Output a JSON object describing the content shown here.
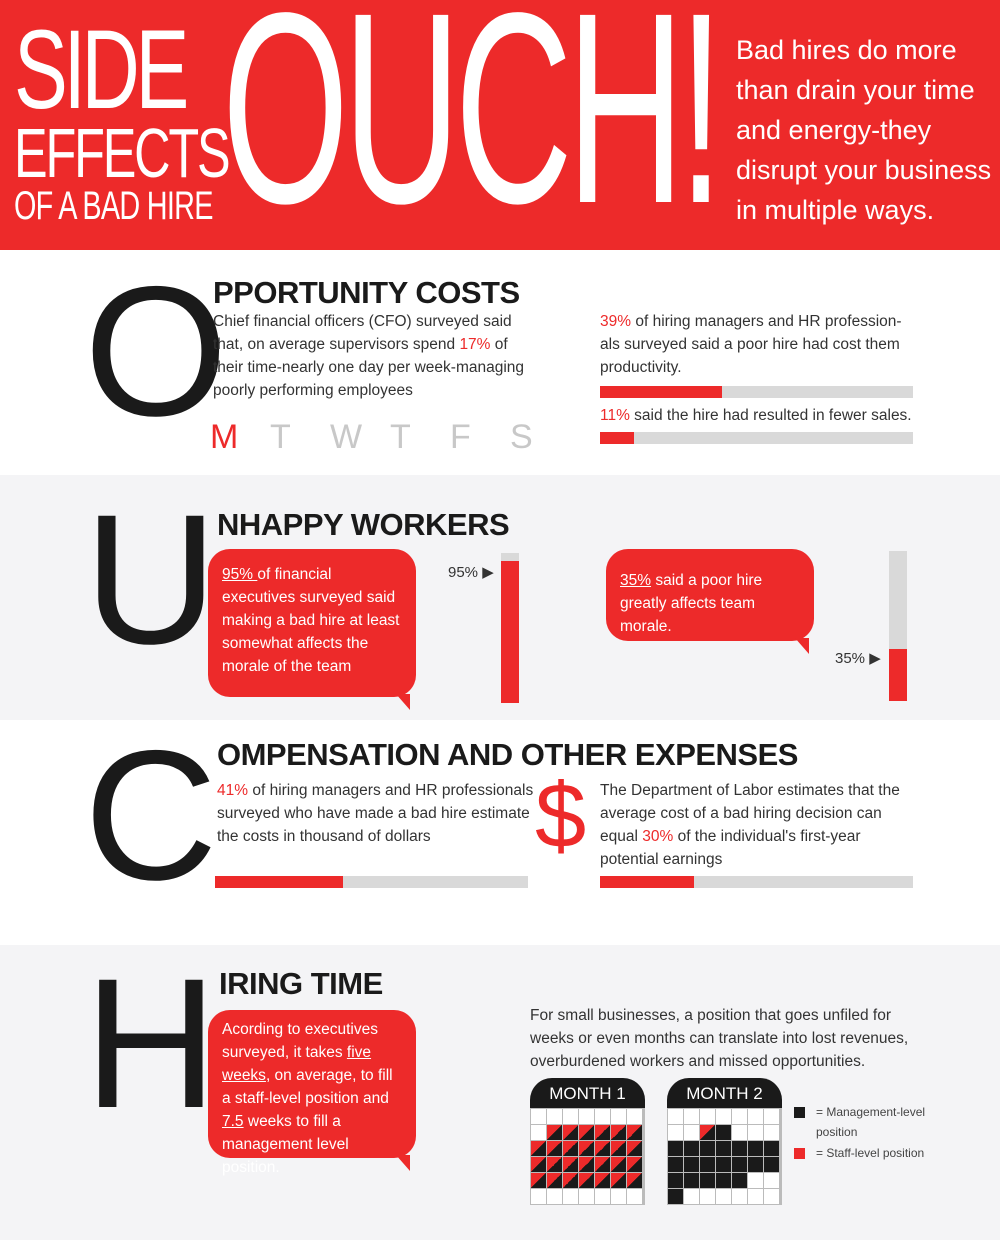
{
  "header": {
    "title_line1": "SIDE",
    "title_line2": "EFFECTS",
    "title_line3": "OF A BAD HIRE",
    "ouch": "OUCH!",
    "tagline": "Bad hires do more than drain your time  and energy-they disrupt your business in multiple ways."
  },
  "opportunity": {
    "letter": "O",
    "title": "PPORTUNITY COSTS",
    "text_pre": "Chief financial officers (CFO) surveyed said that, on average supervisors spend ",
    "text_pct": "17%",
    "text_post": " of their time-nearly one day per week-managing poorly performing employees",
    "days": [
      "M",
      "T",
      "W",
      "T",
      "F",
      "S"
    ],
    "stat1_pct": "39%",
    "stat1_text": " of hiring managers and HR profession-als surveyed said a poor hire had cost them productivity.",
    "stat1_value": 39,
    "stat2_pct": "11%",
    "stat2_text": " said the hire had resulted in fewer sales.",
    "stat2_value": 11
  },
  "unhappy": {
    "letter": "U",
    "title": "NHAPPY WORKERS",
    "bubble1_pct": "95% ",
    "bubble1_text": "of financial executives surveyed said making a bad hire at least somewhat affects the morale of the team",
    "bar1_label": "95%",
    "bar1_value": 95,
    "bubble2_pct": "35%",
    "bubble2_text": " said a poor hire greatly affects team morale.",
    "bar2_label": "35%",
    "bar2_value": 35
  },
  "compensation": {
    "letter": "C",
    "title": "OMPENSATION  AND OTHER EXPENSES",
    "left_pct": "41%",
    "left_text": " of hiring managers and HR professionals surveyed who have made a bad hire estimate the costs in thousand of dollars",
    "left_value": 41,
    "dollar": "$",
    "right_pre": "The Department of Labor estimates that the average cost of a bad hiring decision can equal ",
    "right_pct": "30%",
    "right_post": " of the individual's first-year potential earnings",
    "right_value": 30
  },
  "hiring": {
    "letter": "H",
    "title": "IRING TIME",
    "bubble_a": "Acording to executives surveyed, it takes ",
    "bubble_b": "five weeks",
    "bubble_c": ", on average, to fill a staff-level position and ",
    "bubble_d": "7.5",
    "bubble_e": " weeks to fill a management level position.",
    "right_text": "For small businesses, a position that goes unfiled for weeks or even months can translate into lost revenues, overburdened workers and missed opportunities.",
    "month1": "MONTH 1",
    "month2": "MONTH 2",
    "legend1": "= Management-level position",
    "legend2": "= Staff-level position"
  },
  "colors": {
    "accent": "#ed2a2a",
    "dark": "#1a1a1a",
    "band": "#f4f4f6",
    "bar_bg": "#d9d9d9"
  }
}
